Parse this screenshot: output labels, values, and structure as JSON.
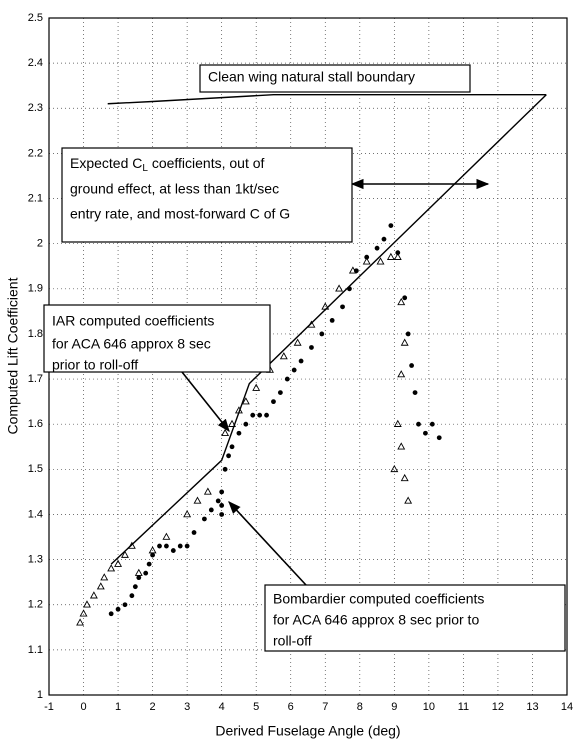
{
  "chart_data": {
    "type": "scatter",
    "x_label": "Derived Fuselage Angle (deg)",
    "y_label": "Computed Lift Coefficient",
    "xlim": [
      -1,
      14
    ],
    "ylim": [
      1,
      2.5
    ],
    "xticks": [
      -1,
      0,
      1,
      2,
      3,
      4,
      5,
      6,
      7,
      8,
      9,
      10,
      11,
      12,
      13,
      14
    ],
    "yticks": [
      1,
      1.1,
      1.2,
      1.3,
      1.4,
      1.5,
      1.6,
      1.7,
      1.8,
      1.9,
      2,
      2.1,
      2.2,
      2.3,
      2.4,
      2.5
    ],
    "grid": true,
    "series": [
      {
        "style": "line",
        "color": "#000000",
        "x": [
          0.8,
          4.0,
          4.8,
          13.4
        ],
        "y": [
          1.29,
          1.52,
          1.69,
          2.33
        ]
      },
      {
        "style": "line",
        "color": "#000000",
        "x": [
          0.7,
          2.0,
          5.5,
          13.4
        ],
        "y": [
          2.31,
          2.315,
          2.33,
          2.33
        ]
      },
      {
        "style": "triangle",
        "color": "#000000",
        "x": [
          -0.1,
          0,
          0.1,
          0.3,
          0.5,
          0.6,
          0.8,
          1,
          1.2,
          1.4,
          1.6,
          2,
          2.4,
          3,
          3.3,
          3.6,
          4.1,
          4.3,
          4.5,
          4.7,
          5,
          5.4,
          5.8,
          6.2,
          6.6,
          7,
          7.4,
          7.8,
          8.2,
          8.6,
          8.9,
          9.1,
          9.2,
          9.3,
          9.2,
          9.1,
          9.2,
          9,
          9.3,
          9.4
        ],
        "y": [
          1.16,
          1.18,
          1.2,
          1.22,
          1.24,
          1.26,
          1.28,
          1.29,
          1.31,
          1.33,
          1.27,
          1.32,
          1.35,
          1.4,
          1.43,
          1.45,
          1.58,
          1.6,
          1.63,
          1.65,
          1.68,
          1.72,
          1.75,
          1.78,
          1.82,
          1.86,
          1.9,
          1.94,
          1.96,
          1.96,
          1.97,
          1.97,
          1.87,
          1.78,
          1.71,
          1.6,
          1.55,
          1.5,
          1.48,
          1.43
        ]
      },
      {
        "style": "circle",
        "color": "#000000",
        "x": [
          0.8,
          1,
          1.2,
          1.4,
          1.5,
          1.6,
          1.8,
          1.9,
          2,
          2.2,
          2.4,
          2.6,
          2.8,
          3,
          3.2,
          3.5,
          3.7,
          3.9,
          4,
          4,
          4,
          4.1,
          4.2,
          4.3,
          4.5,
          4.7,
          4.9,
          5.1,
          5.3,
          5.5,
          5.7,
          5.9,
          6.1,
          6.3,
          6.6,
          6.9,
          7.2,
          7.5,
          7.7,
          7.9,
          8.2,
          8.5,
          8.7,
          8.9,
          9.1,
          9.3,
          9.4,
          9.5,
          9.6,
          9.7,
          9.9,
          10.1,
          10.3
        ],
        "y": [
          1.18,
          1.19,
          1.2,
          1.22,
          1.24,
          1.26,
          1.27,
          1.29,
          1.31,
          1.33,
          1.33,
          1.32,
          1.33,
          1.33,
          1.36,
          1.39,
          1.41,
          1.43,
          1.42,
          1.4,
          1.45,
          1.5,
          1.53,
          1.55,
          1.58,
          1.6,
          1.62,
          1.62,
          1.62,
          1.65,
          1.67,
          1.7,
          1.72,
          1.74,
          1.77,
          1.8,
          1.83,
          1.86,
          1.9,
          1.94,
          1.97,
          1.99,
          2.01,
          2.04,
          1.98,
          1.88,
          1.8,
          1.73,
          1.67,
          1.6,
          1.58,
          1.6,
          1.57
        ]
      }
    ],
    "annotations": [
      {
        "lines": [
          "Clean wing natural stall boundary"
        ]
      },
      {
        "lines": [
          [
            "Expected C",
            "L",
            " coefficients, out of"
          ],
          "ground effect, at less than 1kt/sec",
          "entry rate, and most-forward C of G"
        ]
      },
      {
        "lines": [
          "IAR computed coefficients",
          "for ACA 646 approx 8 sec",
          "prior to roll-off"
        ]
      },
      {
        "lines": [
          "Bombardier computed coefficients",
          "for ACA 646 approx 8 sec prior to",
          "roll-off"
        ]
      }
    ]
  }
}
